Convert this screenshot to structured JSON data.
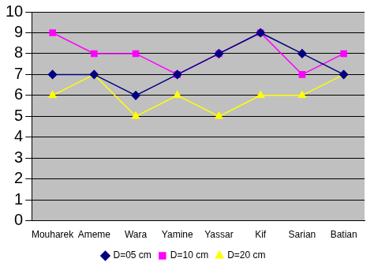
{
  "chart_data": {
    "type": "line",
    "categories": [
      "Mouharek",
      "Ameme",
      "Wara",
      "Yamine",
      "Yassar",
      "Kif",
      "Sarian",
      "Batian"
    ],
    "series": [
      {
        "name": "D=05 cm",
        "color": "#000080",
        "marker": "diamond",
        "values": [
          7,
          7,
          6,
          7,
          8,
          9,
          8,
          7
        ]
      },
      {
        "name": "D=10 cm",
        "color": "#ff00ff",
        "marker": "square",
        "values": [
          9,
          8,
          8,
          7,
          8,
          9,
          7,
          8
        ]
      },
      {
        "name": "D=20 cm",
        "color": "#ffff00",
        "marker": "triangle",
        "values": [
          6,
          7,
          5,
          6,
          5,
          6,
          6,
          7
        ]
      }
    ],
    "ylim": [
      0,
      10
    ],
    "yticks": [
      0,
      1,
      2,
      3,
      4,
      5,
      6,
      7,
      8,
      9,
      10
    ],
    "grid": true,
    "legend": "bottom"
  }
}
